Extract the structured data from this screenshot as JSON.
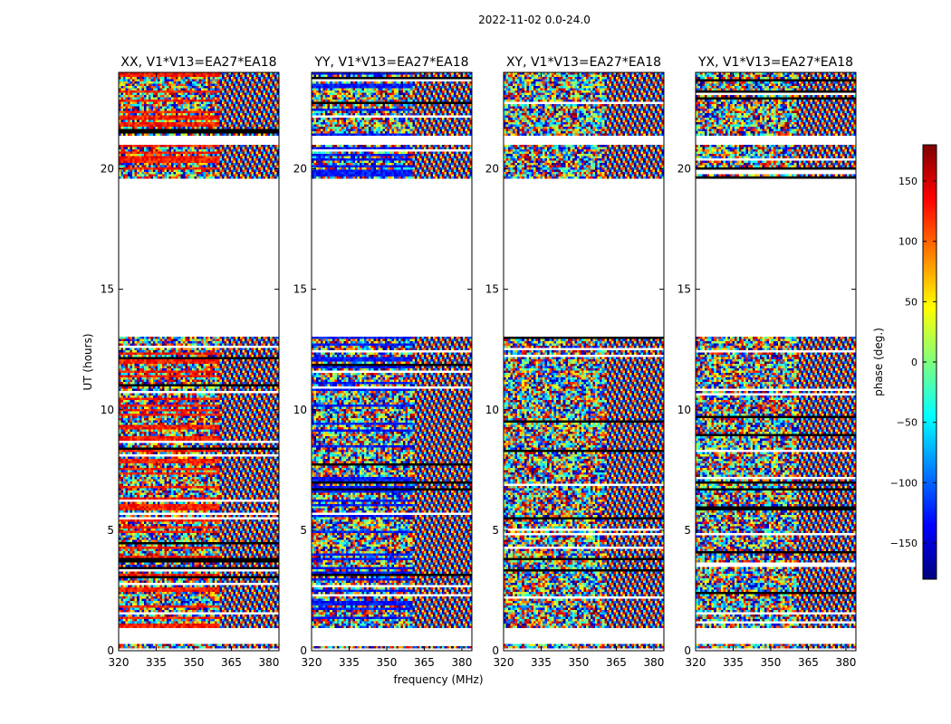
{
  "figure_title": "2022-11-02 0.0-24.0",
  "chart_data": {
    "type": "heatmap",
    "suptitle": "2022-11-02 0.0-24.0",
    "xlabel": "frequency (MHz)",
    "ylabel": "UT (hours)",
    "xlim": [
      320,
      384
    ],
    "ylim": [
      0,
      24
    ],
    "x_ticks": [
      320,
      335,
      350,
      365,
      380
    ],
    "y_ticks": [
      0,
      5,
      10,
      15,
      20
    ],
    "panels": [
      {
        "title": "XX, V1*V13=EA27*EA18",
        "bias": "red"
      },
      {
        "title": "YY, V1*V13=EA27*EA18",
        "bias": "blue"
      },
      {
        "title": "XY, V1*V13=EA27*EA18",
        "bias": "none"
      },
      {
        "title": "YX, V1*V13=EA27*EA18",
        "bias": "none"
      }
    ],
    "data_gaps_hours": [
      [
        0.0,
        0.05
      ],
      [
        0.3,
        0.9
      ],
      [
        13.0,
        19.6
      ],
      [
        21.0,
        21.4
      ],
      [
        24.0,
        24.0
      ]
    ],
    "colorbar": {
      "label": "phase (deg.)",
      "range": [
        -180,
        180
      ],
      "ticks": [
        150,
        100,
        50,
        0,
        -50,
        -100,
        -150
      ],
      "tick_labels": [
        "150",
        "100",
        "50",
        "0",
        "−50",
        "−100",
        "−150"
      ],
      "colormap": "jet"
    },
    "colormap_stops": [
      "#00007f",
      "#0000ff",
      "#007fff",
      "#00ffff",
      "#7fff7f",
      "#ffff00",
      "#ff7f00",
      "#ff0000",
      "#7f0000"
    ]
  }
}
